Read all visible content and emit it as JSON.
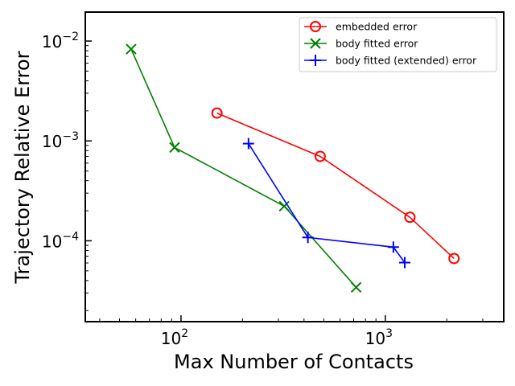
{
  "chart_data": {
    "type": "line",
    "title": "",
    "xlabel": "Max Number of Contacts",
    "ylabel": "Trajectory Relative Error",
    "xscale": "log",
    "yscale": "log",
    "xlim": [
      34,
      3800
    ],
    "ylim": [
      1.55e-05,
      0.0195
    ],
    "grid": false,
    "legend_position": "top-right",
    "x_ticks": [
      {
        "value": 100,
        "base": "10",
        "exp": "2"
      },
      {
        "value": 1000,
        "base": "10",
        "exp": "3"
      }
    ],
    "y_ticks": [
      {
        "value": 0.0001,
        "base": "10",
        "exp": "−4"
      },
      {
        "value": 0.001,
        "base": "10",
        "exp": "−3"
      },
      {
        "value": 0.01,
        "base": "10",
        "exp": "−2"
      }
    ],
    "series": [
      {
        "name": "embedded error",
        "color": "#ff0000",
        "marker": "circle",
        "x": [
          150,
          480,
          1320,
          2170
        ],
        "y": [
          0.0019,
          0.0007,
          0.000172,
          6.65e-05
        ]
      },
      {
        "name": "body fitted error",
        "color": "#008000",
        "marker": "x",
        "x": [
          57,
          93,
          320,
          720
        ],
        "y": [
          0.0083,
          0.00086,
          0.000222,
          3.42e-05
        ]
      },
      {
        "name": "body fitted (extended) error",
        "color": "#0000ff",
        "marker": "plus",
        "x": [
          214,
          418,
          1095,
          1245
        ],
        "y": [
          0.00094,
          0.000108,
          8.65e-05,
          6.05e-05
        ]
      }
    ]
  }
}
